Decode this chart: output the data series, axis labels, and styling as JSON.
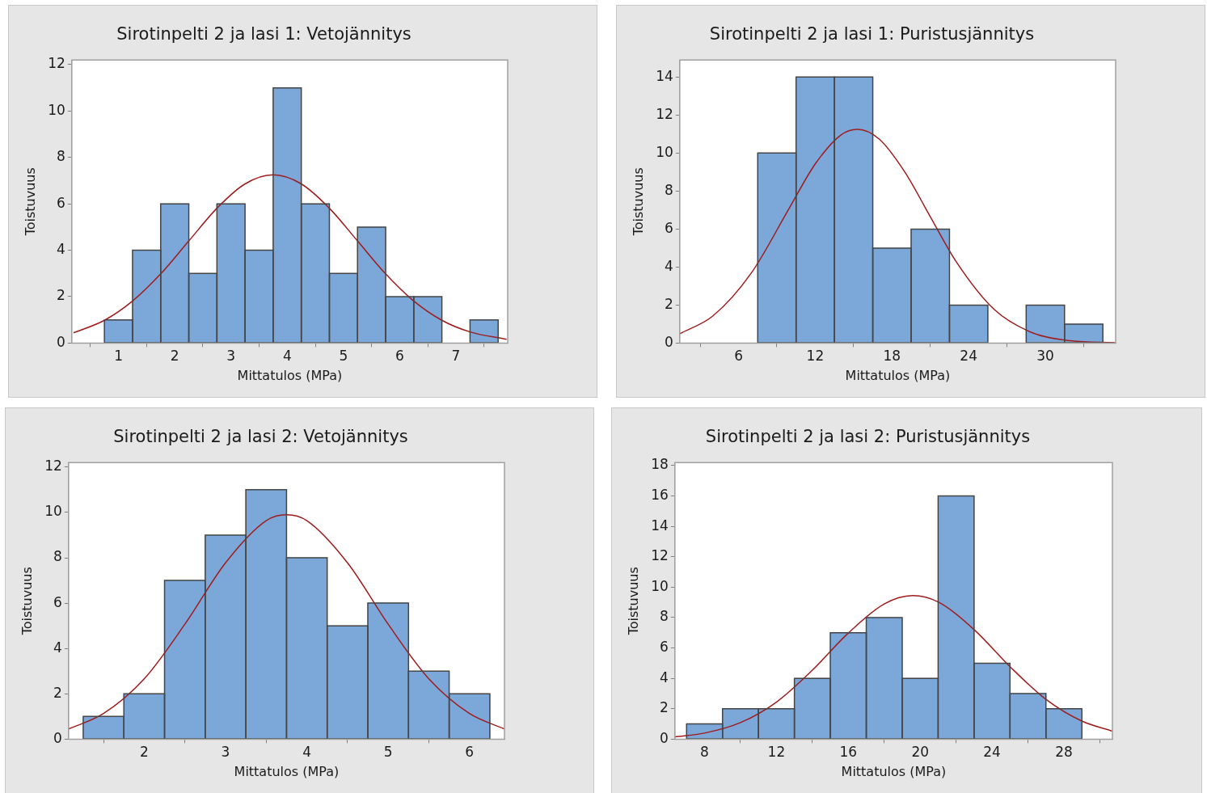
{
  "chart_data": [
    {
      "type": "histogram",
      "title": "Sirotinpelti 2 ja lasi 1: Vetojännitys",
      "xlabel": "Mittatulos (MPa)",
      "ylabel": "Toistuvuus",
      "xlim": [
        0.17,
        7.92
      ],
      "ylim": [
        0,
        12.2
      ],
      "xticks": [
        1,
        2,
        3,
        4,
        5,
        6,
        7
      ],
      "yticks": [
        0,
        2,
        4,
        6,
        8,
        10,
        12
      ],
      "series": [
        {
          "type": "histogram",
          "color": "#7ba7d9",
          "bins": [
            0.75,
            1.25,
            1.75,
            2.25,
            2.75,
            3.25,
            3.75,
            4.25,
            4.75,
            5.25,
            5.75,
            6.25,
            6.75,
            7.25,
            7.75
          ],
          "values": [
            1,
            4,
            6,
            3,
            6,
            4,
            11,
            6,
            3,
            5,
            2,
            2,
            0,
            1
          ]
        },
        {
          "type": "line",
          "color": "#a01c1c",
          "x": [
            0.2,
            0.75,
            1.25,
            1.75,
            2.25,
            2.75,
            3.25,
            3.75,
            4.25,
            4.75,
            5.25,
            5.75,
            6.25,
            6.75,
            7.25,
            7.9
          ],
          "values": [
            0.44,
            0.98,
            1.81,
            2.98,
            4.4,
            5.81,
            6.86,
            7.25,
            6.86,
            5.81,
            4.4,
            2.98,
            1.81,
            0.98,
            0.48,
            0.16
          ]
        }
      ]
    },
    {
      "type": "histogram",
      "title": "Sirotinpelti 2 ja lasi 1: Puristusjännitys",
      "xlabel": "Mittatulos (MPa)",
      "ylabel": "Toistuvuus",
      "xlim": [
        1.4,
        35.5
      ],
      "ylim": [
        0,
        14.9
      ],
      "xticks": [
        6,
        12,
        18,
        24,
        30
      ],
      "yticks": [
        0,
        2,
        4,
        6,
        8,
        10,
        12,
        14
      ],
      "series": [
        {
          "type": "histogram",
          "color": "#7ba7d9",
          "bins": [
            7.5,
            10.5,
            13.5,
            16.5,
            19.5,
            22.5,
            25.5,
            28.5,
            31.5,
            34.5
          ],
          "values": [
            10,
            14,
            14,
            5,
            6,
            2,
            0,
            2,
            1
          ]
        },
        {
          "type": "line",
          "color": "#a01c1c",
          "x": [
            1.4,
            4,
            7,
            10,
            12,
            14,
            15.3,
            17,
            19,
            21,
            23,
            26,
            29,
            32,
            35.5
          ],
          "values": [
            0.49,
            1.43,
            3.69,
            7.14,
            9.43,
            10.95,
            11.25,
            10.74,
            9.01,
            6.65,
            4.31,
            1.77,
            0.54,
            0.12,
            0.02
          ]
        }
      ]
    },
    {
      "type": "histogram",
      "title": "Sirotinpelti 2 ja lasi 2: Vetojännitys",
      "xlabel": "Mittatulos (MPa)",
      "ylabel": "Toistuvuus",
      "xlim": [
        1.07,
        6.43
      ],
      "ylim": [
        0,
        12.2
      ],
      "xticks": [
        2,
        3,
        4,
        5,
        6
      ],
      "yticks": [
        0,
        2,
        4,
        6,
        8,
        10,
        12
      ],
      "series": [
        {
          "type": "histogram",
          "color": "#7ba7d9",
          "bins": [
            1.25,
            1.75,
            2.25,
            2.75,
            3.25,
            3.75,
            4.25,
            4.75,
            5.25,
            5.75,
            6.25
          ],
          "values": [
            1,
            2,
            7,
            9,
            11,
            8,
            5,
            6,
            3,
            2
          ]
        },
        {
          "type": "line",
          "color": "#a01c1c",
          "x": [
            1.07,
            1.5,
            2,
            2.5,
            3,
            3.5,
            3.75,
            4,
            4.5,
            5,
            5.5,
            6,
            6.43
          ],
          "values": [
            0.45,
            1.13,
            2.66,
            5.07,
            7.78,
            9.64,
            9.9,
            9.64,
            7.78,
            5.07,
            2.66,
            1.13,
            0.45
          ]
        }
      ]
    },
    {
      "type": "histogram",
      "title": "Sirotinpelti 2 ja lasi 2: Puristusjännitys",
      "xlabel": "Mittatulos (MPa)",
      "ylabel": "Toistuvuus",
      "xlim": [
        6.35,
        30.7
      ],
      "ylim": [
        0,
        18.2
      ],
      "xticks": [
        8,
        12,
        16,
        20,
        24,
        28
      ],
      "yticks": [
        0,
        2,
        4,
        6,
        8,
        10,
        12,
        14,
        16,
        18
      ],
      "series": [
        {
          "type": "histogram",
          "color": "#7ba7d9",
          "bins": [
            7,
            9,
            11,
            13,
            15,
            17,
            19,
            21,
            23,
            25,
            27,
            29
          ],
          "values": [
            1,
            2,
            2,
            4,
            7,
            8,
            4,
            16,
            5,
            3,
            2
          ]
        },
        {
          "type": "line",
          "color": "#a01c1c",
          "x": [
            6.35,
            8,
            10,
            12,
            14,
            16,
            18,
            19.6,
            21,
            23,
            25,
            27,
            29,
            30.7
          ],
          "values": [
            0.15,
            0.4,
            1.09,
            2.44,
            4.54,
            6.98,
            8.9,
            9.45,
            9.03,
            7.21,
            4.77,
            2.62,
            1.19,
            0.53
          ]
        }
      ]
    }
  ]
}
